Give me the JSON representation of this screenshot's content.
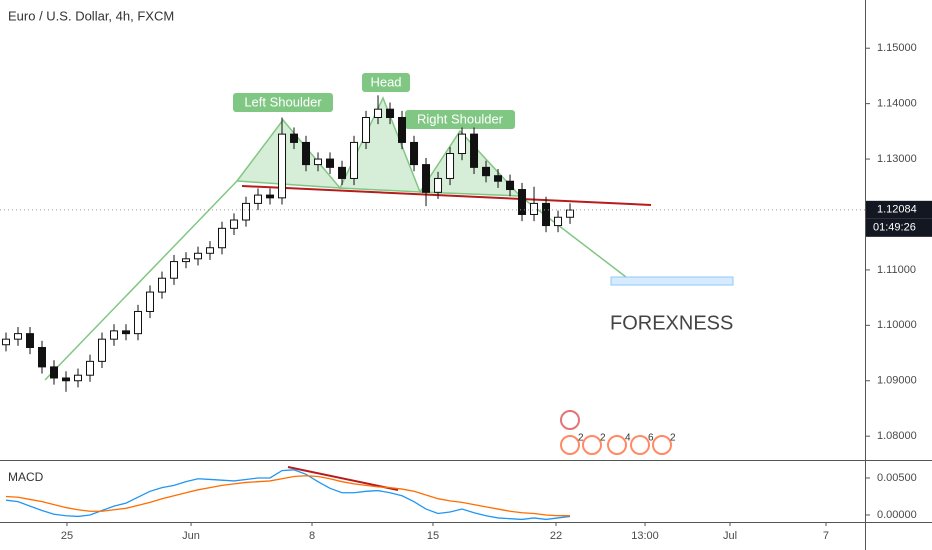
{
  "chart_data": {
    "type": "candlestick",
    "title": "Euro / U.S. Dollar, 4h, FXCM",
    "x": [
      0,
      1,
      2,
      3,
      4,
      5,
      6,
      7,
      8,
      9,
      10,
      11,
      12,
      13,
      14,
      15,
      16,
      17,
      18,
      19,
      20,
      21,
      22,
      23,
      24,
      25,
      26,
      27,
      28,
      29,
      30,
      31,
      32,
      33,
      34,
      35,
      36,
      37,
      38,
      39,
      40,
      41,
      42,
      43,
      44,
      45,
      46,
      47
    ],
    "open": [
      1.0965,
      1.0975,
      1.0985,
      1.096,
      1.0925,
      1.0905,
      1.09,
      1.091,
      1.0935,
      1.0975,
      1.099,
      1.0985,
      1.1025,
      1.106,
      1.1085,
      1.1115,
      1.112,
      1.113,
      1.114,
      1.1175,
      1.119,
      1.122,
      1.1235,
      1.123,
      1.1345,
      1.133,
      1.129,
      1.13,
      1.1285,
      1.1265,
      1.133,
      1.1375,
      1.139,
      1.1375,
      1.133,
      1.129,
      1.124,
      1.1265,
      1.131,
      1.1345,
      1.1285,
      1.127,
      1.126,
      1.1245,
      1.12,
      1.122,
      1.118,
      1.1195
    ],
    "high": [
      1.0987,
      1.0997,
      1.0997,
      1.0972,
      1.0937,
      1.0917,
      1.0922,
      1.0947,
      1.0987,
      1.1002,
      1.1002,
      1.1037,
      1.1072,
      1.1097,
      1.1127,
      1.1132,
      1.1142,
      1.1152,
      1.1187,
      1.1202,
      1.1232,
      1.1247,
      1.1247,
      1.1375,
      1.1357,
      1.1342,
      1.1312,
      1.1312,
      1.1297,
      1.1342,
      1.1387,
      1.1415,
      1.1402,
      1.1387,
      1.1342,
      1.1302,
      1.1277,
      1.1322,
      1.1357,
      1.1357,
      1.1297,
      1.1282,
      1.1272,
      1.1257,
      1.125,
      1.1232,
      1.1207,
      1.122
    ],
    "low": [
      1.0953,
      1.0963,
      1.0948,
      1.0913,
      1.0893,
      1.088,
      1.0888,
      1.0898,
      1.0923,
      1.0963,
      1.0973,
      1.0973,
      1.1013,
      1.1048,
      1.1073,
      1.1103,
      1.1108,
      1.1118,
      1.1128,
      1.1163,
      1.1178,
      1.1208,
      1.1218,
      1.1218,
      1.1318,
      1.1278,
      1.1278,
      1.1273,
      1.1253,
      1.1253,
      1.1318,
      1.1363,
      1.1363,
      1.1318,
      1.1278,
      1.1215,
      1.1228,
      1.1253,
      1.1298,
      1.1273,
      1.1258,
      1.1248,
      1.1233,
      1.1188,
      1.1188,
      1.1168,
      1.1168,
      1.1183
    ],
    "close": [
      1.0975,
      1.0985,
      1.096,
      1.0925,
      1.0905,
      1.09,
      1.091,
      1.0935,
      1.0975,
      1.099,
      1.0985,
      1.1025,
      1.106,
      1.1085,
      1.1115,
      1.112,
      1.113,
      1.114,
      1.1175,
      1.119,
      1.122,
      1.1235,
      1.123,
      1.1345,
      1.133,
      1.129,
      1.13,
      1.1285,
      1.1265,
      1.133,
      1.1375,
      1.139,
      1.1375,
      1.133,
      1.129,
      1.124,
      1.1265,
      1.131,
      1.1345,
      1.1285,
      1.127,
      1.126,
      1.1245,
      1.12,
      1.122,
      1.118,
      1.1195,
      1.1208
    ],
    "xlim": [
      -0.5,
      71.58
    ],
    "xticks": [
      {
        "value": 5.08,
        "label": "25"
      },
      {
        "value": 15.42,
        "label": "Jun"
      },
      {
        "value": 25.5,
        "label": "8"
      },
      {
        "value": 35.58,
        "label": "15"
      },
      {
        "value": 45.83,
        "label": "22"
      },
      {
        "value": 53.25,
        "label": "13:00"
      },
      {
        "value": 60.33,
        "label": "Jul"
      },
      {
        "value": 68.33,
        "label": "7"
      }
    ],
    "ylim": [
      1.0757,
      1.1587
    ],
    "yticks": [
      {
        "value": 1.08,
        "label": "1.08000"
      },
      {
        "value": 1.09,
        "label": "1.09000"
      },
      {
        "value": 1.1,
        "label": "1.10000"
      },
      {
        "value": 1.11,
        "label": "1.11000"
      },
      {
        "value": 1.12,
        "label": "1.12000"
      },
      {
        "value": 1.13,
        "label": "1.13000"
      },
      {
        "value": 1.14,
        "label": "1.14000"
      },
      {
        "value": 1.15,
        "label": "1.15000"
      }
    ],
    "last_price": {
      "value": 1.12084,
      "label": "1.12084"
    },
    "countdown": "01:49:26",
    "annotations": [
      "Left Shoulder",
      "Head",
      "Right Shoulder",
      "FOREXNESS"
    ],
    "events": [
      "2",
      "2",
      "4",
      "6",
      "2"
    ],
    "macd": {
      "title": "MACD",
      "ylim": [
        -0.00095,
        0.00743
      ],
      "yticks": [
        {
          "value": 0.0,
          "label": "0.00000"
        },
        {
          "value": 0.005,
          "label": "0.00500"
        }
      ],
      "series": [
        {
          "name": "MACD",
          "color": "#2196f3",
          "values": [
            0.002,
            0.0018,
            0.0012,
            0.0006,
            0.0001,
            -0.0001,
            -0.0002,
            0.0,
            0.0006,
            0.0012,
            0.0016,
            0.0024,
            0.0032,
            0.0037,
            0.004,
            0.0045,
            0.0049,
            0.0048,
            0.0047,
            0.0046,
            0.0048,
            0.005,
            0.005,
            0.006,
            0.0061,
            0.0055,
            0.0045,
            0.0036,
            0.003,
            0.003,
            0.0032,
            0.0033,
            0.003,
            0.0026,
            0.0018,
            0.0008,
            0.0002,
            0.0004,
            0.0008,
            0.0003,
            -0.0001,
            -0.0004,
            -0.0005,
            -0.0006,
            -0.0004,
            -0.0006,
            -0.0004,
            -0.0002
          ]
        },
        {
          "name": "Signal",
          "color": "#ff6d00",
          "values": [
            0.0025,
            0.0024,
            0.0021,
            0.0018,
            0.0014,
            0.001,
            0.0007,
            0.0005,
            0.0005,
            0.0007,
            0.0009,
            0.0013,
            0.0017,
            0.0022,
            0.0026,
            0.003,
            0.0034,
            0.0037,
            0.004,
            0.0042,
            0.0044,
            0.0045,
            0.0046,
            0.0049,
            0.0052,
            0.0053,
            0.0052,
            0.0049,
            0.0045,
            0.0042,
            0.004,
            0.0038,
            0.0037,
            0.0035,
            0.0032,
            0.0027,
            0.0022,
            0.0019,
            0.0017,
            0.0014,
            0.0011,
            0.0008,
            0.0005,
            0.0003,
            0.0002,
            0.0,
            -0.0001,
            -0.0001
          ]
        }
      ]
    }
  }
}
